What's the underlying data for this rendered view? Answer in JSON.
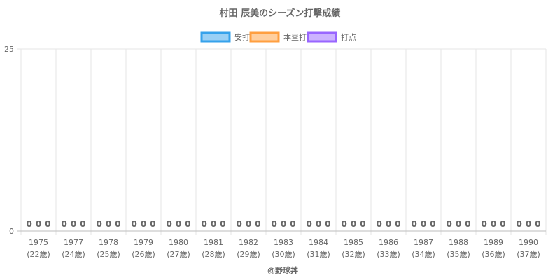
{
  "credit": "@野球丼",
  "chart_data": {
    "type": "bar",
    "title": "村田 辰美のシーズン打撃成績",
    "categories": [
      [
        "1975",
        "(22歳)"
      ],
      [
        "1977",
        "(24歳)"
      ],
      [
        "1978",
        "(25歳)"
      ],
      [
        "1979",
        "(26歳)"
      ],
      [
        "1980",
        "(27歳)"
      ],
      [
        "1981",
        "(28歳)"
      ],
      [
        "1982",
        "(29歳)"
      ],
      [
        "1983",
        "(30歳)"
      ],
      [
        "1984",
        "(31歳)"
      ],
      [
        "1985",
        "(32歳)"
      ],
      [
        "1986",
        "(33歳)"
      ],
      [
        "1987",
        "(34歳)"
      ],
      [
        "1988",
        "(35歳)"
      ],
      [
        "1989",
        "(36歳)"
      ],
      [
        "1990",
        "(37歳)"
      ]
    ],
    "series": [
      {
        "name": "安打",
        "values": [
          0,
          0,
          0,
          0,
          0,
          0,
          0,
          0,
          0,
          0,
          0,
          0,
          0,
          0,
          0
        ],
        "color": "#36a2eb",
        "fill": "#9ad0f5"
      },
      {
        "name": "本塁打",
        "values": [
          0,
          0,
          0,
          0,
          0,
          0,
          0,
          0,
          0,
          0,
          0,
          0,
          0,
          0,
          0
        ],
        "color": "#ff9f40",
        "fill": "#ffcf9f"
      },
      {
        "name": "打点",
        "values": [
          0,
          0,
          0,
          0,
          0,
          0,
          0,
          0,
          0,
          0,
          0,
          0,
          0,
          0,
          0
        ],
        "color": "#9966ff",
        "fill": "#ccb2ff"
      }
    ],
    "ylim": [
      0,
      25
    ],
    "yticks": [
      0,
      25
    ],
    "grid": true,
    "legend": "top-center"
  }
}
